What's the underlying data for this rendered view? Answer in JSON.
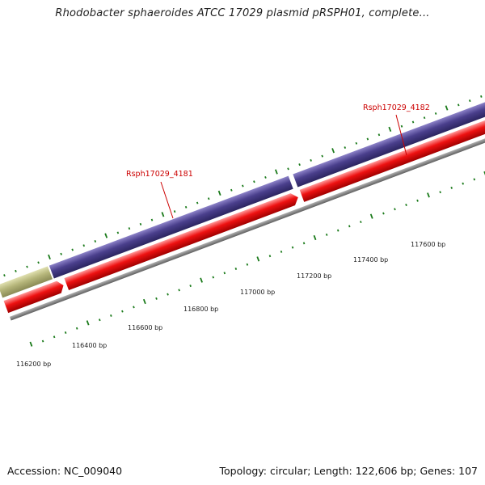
{
  "title": "Rhodobacter sphaeroides ATCC 17029 plasmid pRSPH01, complete...",
  "footer": {
    "accession": "Accession: NC_009040",
    "summary": "Topology: circular; Length: 122,606 bp; Genes: 107"
  },
  "gene_labels": [
    "Rsph17029_4181",
    "Rsph17029_4182"
  ],
  "bp_labels": [
    "116200 bp",
    "116400 bp",
    "116600 bp",
    "116800 bp",
    "117000 bp",
    "117200 bp",
    "117400 bp",
    "117600 bp"
  ],
  "colors": {
    "forward_gene": "#4a3f8c",
    "reverse_gene": "#ee1111",
    "other_gene": "#b5b57a",
    "backbone": "#808080",
    "ticks": "#1a7a1a",
    "label": "#cc0000"
  }
}
